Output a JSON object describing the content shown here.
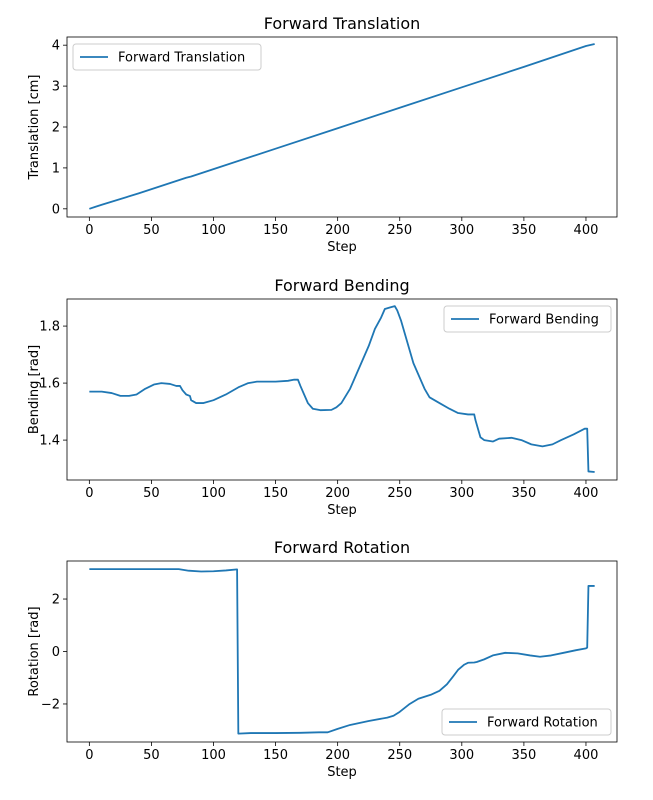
{
  "chart_data": [
    {
      "type": "line",
      "title": "Forward Translation",
      "xlabel": "Step",
      "ylabel": "Translation [cm]",
      "xlim": [
        -18,
        425
      ],
      "ylim": [
        -0.2,
        4.2
      ],
      "xticks": [
        0,
        50,
        100,
        150,
        200,
        250,
        300,
        350,
        400
      ],
      "yticks": [
        0,
        1,
        2,
        3,
        4
      ],
      "ytick_labels": [
        "0",
        "1",
        "2",
        "3",
        "4"
      ],
      "legend_position": "upper-left",
      "series": [
        {
          "name": "Forward Translation",
          "color": "#1f77b4",
          "points": [
            [
              0,
              0
            ],
            [
              5,
              0.05
            ],
            [
              10,
              0.1
            ],
            [
              40,
              0.38
            ],
            [
              78,
              0.76
            ],
            [
              82,
              0.79
            ],
            [
              100,
              0.97
            ],
            [
              150,
              1.47
            ],
            [
              200,
              1.97
            ],
            [
              250,
              2.47
            ],
            [
              300,
              2.97
            ],
            [
              350,
              3.47
            ],
            [
              400,
              3.98
            ],
            [
              407,
              4.03
            ]
          ]
        }
      ]
    },
    {
      "type": "line",
      "title": "Forward Bending",
      "xlabel": "Step",
      "ylabel": "Bending [rad]",
      "xlim": [
        -18,
        425
      ],
      "ylim": [
        1.26,
        1.895
      ],
      "xticks": [
        0,
        50,
        100,
        150,
        200,
        250,
        300,
        350,
        400
      ],
      "yticks": [
        1.4,
        1.6,
        1.8
      ],
      "ytick_labels": [
        "1.4",
        "1.6",
        "1.8"
      ],
      "legend_position": "upper-right",
      "series": [
        {
          "name": "Forward Bending",
          "color": "#1f77b4",
          "points": [
            [
              0,
              1.57
            ],
            [
              10,
              1.57
            ],
            [
              18,
              1.565
            ],
            [
              25,
              1.555
            ],
            [
              32,
              1.555
            ],
            [
              38,
              1.56
            ],
            [
              45,
              1.58
            ],
            [
              52,
              1.595
            ],
            [
              58,
              1.6
            ],
            [
              65,
              1.597
            ],
            [
              70,
              1.59
            ],
            [
              73,
              1.59
            ],
            [
              75,
              1.575
            ],
            [
              78,
              1.56
            ],
            [
              81,
              1.555
            ],
            [
              82,
              1.54
            ],
            [
              86,
              1.53
            ],
            [
              92,
              1.53
            ],
            [
              100,
              1.54
            ],
            [
              110,
              1.56
            ],
            [
              120,
              1.585
            ],
            [
              128,
              1.6
            ],
            [
              135,
              1.605
            ],
            [
              150,
              1.605
            ],
            [
              160,
              1.608
            ],
            [
              165,
              1.612
            ],
            [
              168,
              1.612
            ],
            [
              170,
              1.59
            ],
            [
              173,
              1.56
            ],
            [
              176,
              1.53
            ],
            [
              180,
              1.51
            ],
            [
              186,
              1.505
            ],
            [
              195,
              1.506
            ],
            [
              199,
              1.515
            ],
            [
              203,
              1.53
            ],
            [
              210,
              1.58
            ],
            [
              215,
              1.63
            ],
            [
              220,
              1.68
            ],
            [
              225,
              1.73
            ],
            [
              230,
              1.79
            ],
            [
              235,
              1.83
            ],
            [
              238,
              1.86
            ],
            [
              242,
              1.865
            ],
            [
              246,
              1.87
            ],
            [
              248,
              1.855
            ],
            [
              251,
              1.82
            ],
            [
              255,
              1.76
            ],
            [
              261,
              1.67
            ],
            [
              266,
              1.62
            ],
            [
              270,
              1.58
            ],
            [
              274,
              1.55
            ],
            [
              282,
              1.53
            ],
            [
              290,
              1.51
            ],
            [
              297,
              1.495
            ],
            [
              305,
              1.49
            ],
            [
              310,
              1.49
            ],
            [
              311,
              1.47
            ],
            [
              313,
              1.44
            ],
            [
              315,
              1.41
            ],
            [
              318,
              1.4
            ],
            [
              325,
              1.395
            ],
            [
              330,
              1.405
            ],
            [
              340,
              1.408
            ],
            [
              348,
              1.4
            ],
            [
              356,
              1.385
            ],
            [
              365,
              1.378
            ],
            [
              373,
              1.385
            ],
            [
              380,
              1.4
            ],
            [
              390,
              1.42
            ],
            [
              399,
              1.44
            ],
            [
              401,
              1.44
            ],
            [
              402,
              1.29
            ],
            [
              407,
              1.288
            ]
          ]
        }
      ]
    },
    {
      "type": "line",
      "title": "Forward Rotation",
      "xlabel": "Step",
      "ylabel": "Rotation [rad]",
      "xlim": [
        -18,
        425
      ],
      "ylim": [
        -3.45,
        3.45
      ],
      "xticks": [
        0,
        50,
        100,
        150,
        200,
        250,
        300,
        350,
        400
      ],
      "yticks": [
        -2,
        0,
        2
      ],
      "ytick_labels": [
        "−2",
        "0",
        "2"
      ],
      "legend_position": "lower-right",
      "series": [
        {
          "name": "Forward Rotation",
          "color": "#1f77b4",
          "points": [
            [
              0,
              3.14
            ],
            [
              72,
              3.14
            ],
            [
              80,
              3.08
            ],
            [
              90,
              3.05
            ],
            [
              100,
              3.06
            ],
            [
              110,
              3.09
            ],
            [
              119,
              3.13
            ],
            [
              120,
              -3.13
            ],
            [
              130,
              -3.11
            ],
            [
              150,
              -3.11
            ],
            [
              170,
              -3.1
            ],
            [
              185,
              -3.08
            ],
            [
              192,
              -3.08
            ],
            [
              200,
              -2.95
            ],
            [
              210,
              -2.8
            ],
            [
              225,
              -2.65
            ],
            [
              240,
              -2.52
            ],
            [
              245,
              -2.45
            ],
            [
              250,
              -2.3
            ],
            [
              258,
              -2.0
            ],
            [
              265,
              -1.8
            ],
            [
              275,
              -1.65
            ],
            [
              282,
              -1.5
            ],
            [
              288,
              -1.25
            ],
            [
              293,
              -0.95
            ],
            [
              297,
              -0.7
            ],
            [
              302,
              -0.5
            ],
            [
              305,
              -0.43
            ],
            [
              310,
              -0.42
            ],
            [
              312,
              -0.4
            ],
            [
              318,
              -0.3
            ],
            [
              325,
              -0.15
            ],
            [
              335,
              -0.05
            ],
            [
              345,
              -0.07
            ],
            [
              355,
              -0.15
            ],
            [
              363,
              -0.2
            ],
            [
              372,
              -0.15
            ],
            [
              382,
              -0.05
            ],
            [
              392,
              0.05
            ],
            [
              400,
              0.12
            ],
            [
              401,
              0.15
            ],
            [
              402,
              2.5
            ],
            [
              407,
              2.5
            ]
          ]
        }
      ]
    }
  ]
}
